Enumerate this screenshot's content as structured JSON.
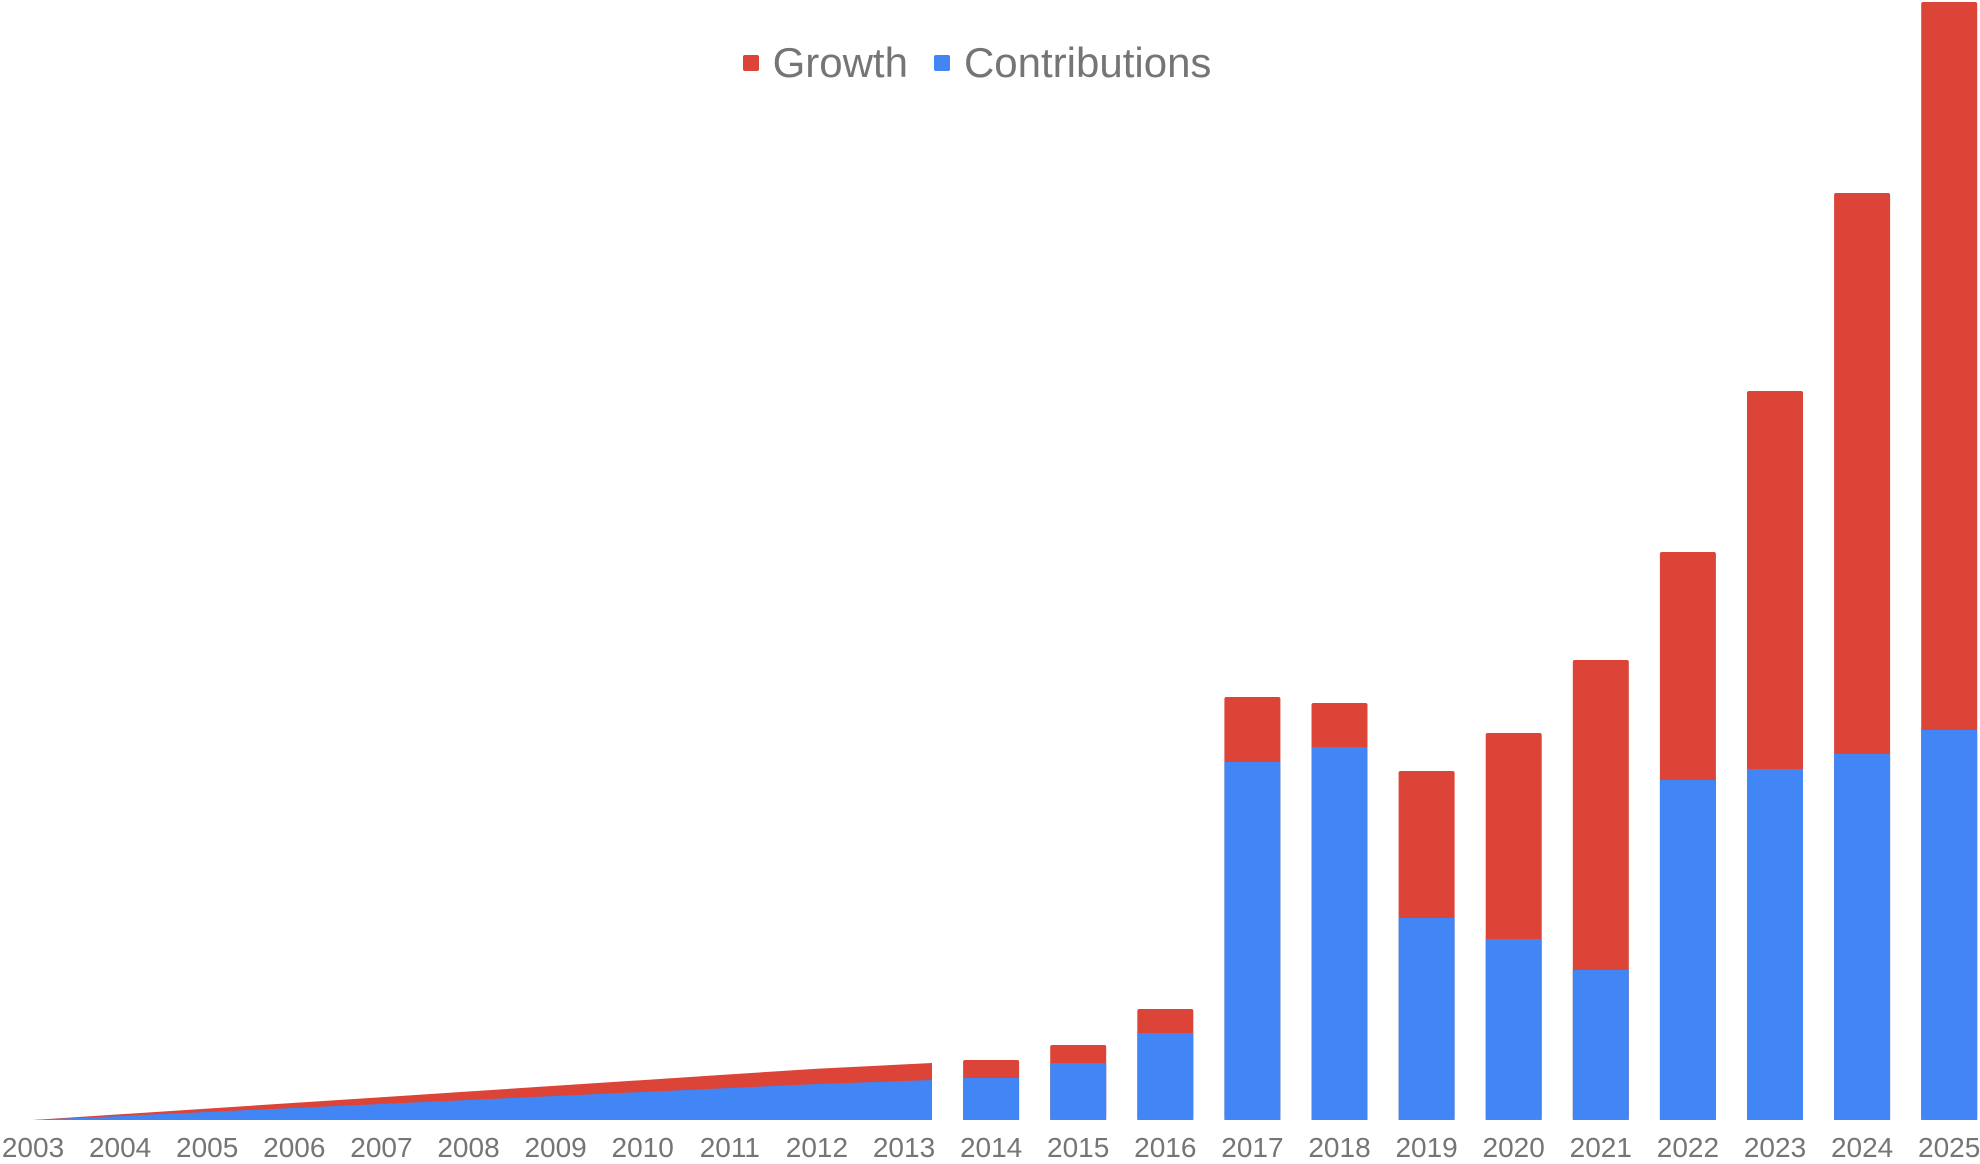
{
  "colors": {
    "growth": "#db4437",
    "contributions": "#4285f4",
    "text": "#757575",
    "background": "#ffffff"
  },
  "legend": [
    {
      "label": "Growth",
      "color": "#db4437"
    },
    {
      "label": "Contributions",
      "color": "#4285f4"
    }
  ],
  "chart_data": {
    "type": "bar",
    "stacked": true,
    "title": "",
    "xlabel": "",
    "ylabel": "",
    "grid": false,
    "legend_position": "top",
    "note": "2003–2013 rendered as a stacked area ramp; 2014–2025 as stacked bars. Values are relative units (no y-axis shown).",
    "categories": [
      "2003",
      "2004",
      "2005",
      "2006",
      "2007",
      "2008",
      "2009",
      "2010",
      "2011",
      "2012",
      "2013",
      "2014",
      "2015",
      "2016",
      "2017",
      "2018",
      "2019",
      "2020",
      "2021",
      "2022",
      "2023",
      "2024",
      "2025"
    ],
    "series": [
      {
        "name": "Contributions",
        "color": "#4285f4",
        "values": [
          0,
          4,
          8,
          12,
          16,
          20,
          24,
          28,
          32,
          36,
          40,
          42,
          57,
          87,
          358,
          373,
          202,
          181,
          150,
          340,
          351,
          366,
          390
        ]
      },
      {
        "name": "Growth",
        "color": "#db4437",
        "values": [
          0,
          1.7,
          3.4,
          5.1,
          6.8,
          8.5,
          10.2,
          11.9,
          13.6,
          15.3,
          17,
          18,
          18,
          24,
          65,
          44,
          147,
          206,
          310,
          228,
          378,
          561,
          728
        ]
      }
    ],
    "ylim": [
      0,
      1120
    ]
  }
}
